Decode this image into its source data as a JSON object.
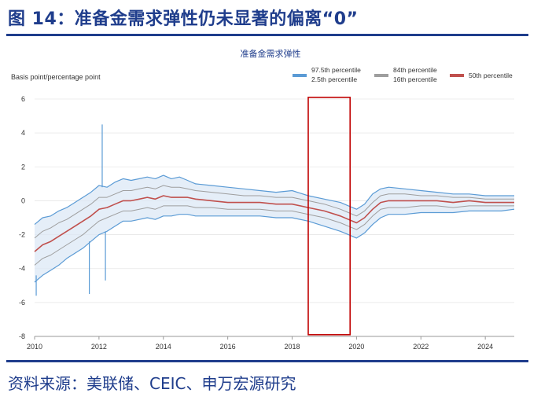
{
  "figure": {
    "title": "图 14：准备金需求弹性仍未显著的偏离“0”",
    "source": "资料来源：美联储、CEIC、申万宏源研究"
  },
  "chart_data": {
    "type": "line",
    "title": "准备金需求弹性",
    "ylabel": "Basis point/percentage point",
    "xlim": [
      2010,
      2024.9
    ],
    "ylim": [
      -8,
      6
    ],
    "x_ticks": [
      "2010",
      "2012",
      "2014",
      "2016",
      "2018",
      "2020",
      "2022",
      "2024"
    ],
    "y_ticks": [
      "6",
      "4",
      "2",
      "0",
      "-2",
      "-4",
      "-6",
      "-8"
    ],
    "legend": {
      "placement": "top-right",
      "entries": [
        {
          "label_top": "97.5th percentile",
          "label_bottom": "2.5th percentile",
          "color": "#5b9bd5"
        },
        {
          "label_top": "84th percentile",
          "label_bottom": "16th percentile",
          "color": "#9e9e9e"
        },
        {
          "label_top": "",
          "label_bottom": "50th percentile",
          "color": "#c0504d"
        }
      ]
    },
    "highlight_box": {
      "x_start": 2018.5,
      "x_end": 2019.8,
      "y_bottom": -7.9,
      "y_top": 6.1,
      "color": "#c00000"
    },
    "x": [
      2010.0,
      2010.25,
      2010.5,
      2010.75,
      2011.0,
      2011.25,
      2011.5,
      2011.75,
      2012.0,
      2012.25,
      2012.5,
      2012.75,
      2013.0,
      2013.25,
      2013.5,
      2013.75,
      2014.0,
      2014.25,
      2014.5,
      2014.75,
      2015.0,
      2015.5,
      2016.0,
      2016.5,
      2017.0,
      2017.5,
      2018.0,
      2018.5,
      2019.0,
      2019.5,
      2019.75,
      2020.0,
      2020.25,
      2020.5,
      2020.75,
      2021.0,
      2021.5,
      2022.0,
      2022.5,
      2023.0,
      2023.5,
      2024.0,
      2024.5,
      2024.9
    ],
    "series": [
      {
        "name": "97.5th percentile",
        "role": "band-outer-upper",
        "color": "#5b9bd5",
        "values": [
          -1.4,
          -1.0,
          -0.9,
          -0.6,
          -0.4,
          -0.1,
          0.2,
          0.5,
          0.9,
          0.8,
          1.1,
          1.3,
          1.2,
          1.3,
          1.4,
          1.3,
          1.5,
          1.3,
          1.4,
          1.2,
          1.0,
          0.9,
          0.8,
          0.7,
          0.6,
          0.5,
          0.6,
          0.3,
          0.1,
          -0.1,
          -0.3,
          -0.5,
          -0.2,
          0.4,
          0.7,
          0.8,
          0.7,
          0.6,
          0.5,
          0.4,
          0.4,
          0.3,
          0.3,
          0.3
        ]
      },
      {
        "name": "84th percentile",
        "role": "band-inner-upper",
        "color": "#9e9e9e",
        "values": [
          -2.2,
          -1.8,
          -1.6,
          -1.3,
          -1.1,
          -0.8,
          -0.5,
          -0.2,
          0.2,
          0.2,
          0.4,
          0.6,
          0.6,
          0.7,
          0.8,
          0.7,
          0.9,
          0.8,
          0.8,
          0.7,
          0.6,
          0.5,
          0.4,
          0.3,
          0.3,
          0.2,
          0.2,
          0.0,
          -0.2,
          -0.5,
          -0.7,
          -0.9,
          -0.6,
          -0.1,
          0.3,
          0.4,
          0.4,
          0.3,
          0.3,
          0.2,
          0.2,
          0.1,
          0.1,
          0.1
        ]
      },
      {
        "name": "50th percentile",
        "role": "median",
        "color": "#c0504d",
        "values": [
          -3.0,
          -2.6,
          -2.4,
          -2.1,
          -1.8,
          -1.5,
          -1.2,
          -0.9,
          -0.5,
          -0.4,
          -0.2,
          0.0,
          0.0,
          0.1,
          0.2,
          0.1,
          0.3,
          0.2,
          0.2,
          0.2,
          0.1,
          0.0,
          -0.1,
          -0.1,
          -0.1,
          -0.2,
          -0.2,
          -0.4,
          -0.6,
          -0.9,
          -1.1,
          -1.3,
          -1.0,
          -0.5,
          -0.1,
          0.0,
          0.0,
          0.0,
          0.0,
          -0.1,
          0.0,
          -0.1,
          -0.1,
          -0.1
        ]
      },
      {
        "name": "16th percentile",
        "role": "band-inner-lower",
        "color": "#9e9e9e",
        "values": [
          -3.8,
          -3.4,
          -3.2,
          -2.9,
          -2.6,
          -2.3,
          -2.0,
          -1.6,
          -1.2,
          -1.0,
          -0.8,
          -0.6,
          -0.6,
          -0.5,
          -0.4,
          -0.5,
          -0.3,
          -0.3,
          -0.3,
          -0.3,
          -0.4,
          -0.4,
          -0.5,
          -0.5,
          -0.5,
          -0.6,
          -0.6,
          -0.8,
          -1.0,
          -1.3,
          -1.5,
          -1.7,
          -1.4,
          -0.9,
          -0.5,
          -0.4,
          -0.4,
          -0.3,
          -0.3,
          -0.4,
          -0.3,
          -0.3,
          -0.3,
          -0.3
        ]
      },
      {
        "name": "2.5th percentile",
        "role": "band-outer-lower",
        "color": "#5b9bd5",
        "values": [
          -4.8,
          -4.4,
          -4.1,
          -3.8,
          -3.4,
          -3.1,
          -2.8,
          -2.4,
          -2.0,
          -1.8,
          -1.5,
          -1.2,
          -1.2,
          -1.1,
          -1.0,
          -1.1,
          -0.9,
          -0.9,
          -0.8,
          -0.8,
          -0.9,
          -0.9,
          -0.9,
          -0.9,
          -0.9,
          -1.0,
          -1.0,
          -1.2,
          -1.5,
          -1.8,
          -2.0,
          -2.2,
          -1.9,
          -1.4,
          -1.0,
          -0.8,
          -0.8,
          -0.7,
          -0.7,
          -0.7,
          -0.6,
          -0.6,
          -0.6,
          -0.5
        ]
      }
    ],
    "spikes": [
      {
        "x": 2012.1,
        "to": 4.5
      },
      {
        "x": 2012.2,
        "to": -4.7
      },
      {
        "x": 2011.7,
        "to": -5.5
      },
      {
        "x": 2010.05,
        "to": -5.6
      }
    ]
  }
}
